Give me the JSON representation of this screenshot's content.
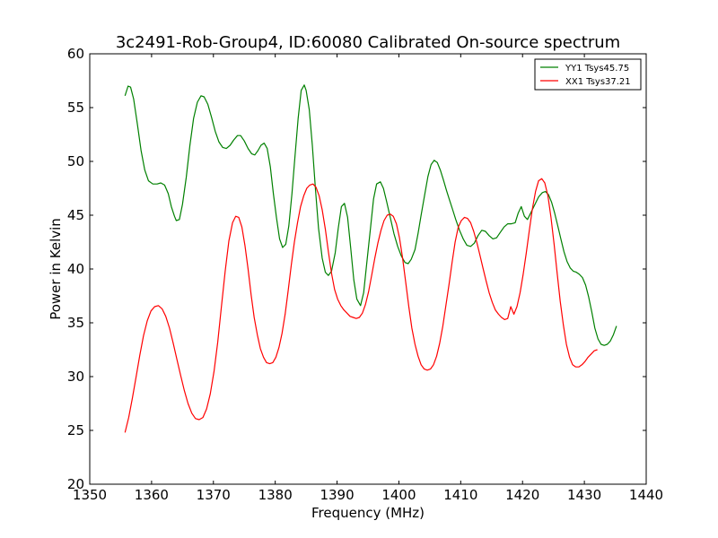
{
  "chart_data": {
    "type": "line",
    "title": "3c2491-Rob-Group4, ID:60080 Calibrated On-source spectrum",
    "xlabel": "Frequency (MHz)",
    "ylabel": "Power in Kelvin",
    "xlim": [
      1350,
      1440
    ],
    "ylim": [
      20,
      60
    ],
    "xticks": [
      "1350",
      "1360",
      "1370",
      "1380",
      "1390",
      "1400",
      "1410",
      "1420",
      "1430",
      "1440"
    ],
    "yticks": [
      "20",
      "25",
      "30",
      "35",
      "40",
      "45",
      "50",
      "55",
      "60"
    ],
    "grid": false,
    "legend_position": "top-right",
    "series": [
      {
        "name": "YY1 Tsys45.75",
        "color": "#008000",
        "points": [
          [
            1355.7,
            56.1
          ],
          [
            1356.2,
            57.0
          ],
          [
            1356.6,
            56.9
          ],
          [
            1357.1,
            55.8
          ],
          [
            1357.7,
            53.5
          ],
          [
            1358.3,
            51.0
          ],
          [
            1358.9,
            49.2
          ],
          [
            1359.5,
            48.2
          ],
          [
            1360.2,
            47.9
          ],
          [
            1360.9,
            47.9
          ],
          [
            1361.5,
            48.0
          ],
          [
            1362.1,
            47.8
          ],
          [
            1362.7,
            47.0
          ],
          [
            1363.2,
            45.8
          ],
          [
            1363.7,
            44.9
          ],
          [
            1364.0,
            44.5
          ],
          [
            1364.5,
            44.6
          ],
          [
            1365.0,
            46.0
          ],
          [
            1365.6,
            48.5
          ],
          [
            1366.2,
            51.5
          ],
          [
            1366.8,
            54.0
          ],
          [
            1367.4,
            55.5
          ],
          [
            1368.0,
            56.1
          ],
          [
            1368.5,
            56.0
          ],
          [
            1369.1,
            55.3
          ],
          [
            1369.7,
            54.1
          ],
          [
            1370.3,
            52.8
          ],
          [
            1370.9,
            51.8
          ],
          [
            1371.5,
            51.3
          ],
          [
            1372.1,
            51.2
          ],
          [
            1372.7,
            51.5
          ],
          [
            1373.3,
            52.0
          ],
          [
            1373.9,
            52.4
          ],
          [
            1374.4,
            52.4
          ],
          [
            1375.0,
            51.9
          ],
          [
            1375.6,
            51.2
          ],
          [
            1376.2,
            50.7
          ],
          [
            1376.7,
            50.6
          ],
          [
            1377.2,
            51.0
          ],
          [
            1377.7,
            51.5
          ],
          [
            1378.2,
            51.7
          ],
          [
            1378.7,
            51.2
          ],
          [
            1379.2,
            49.5
          ],
          [
            1379.7,
            47.0
          ],
          [
            1380.2,
            44.8
          ],
          [
            1380.7,
            42.8
          ],
          [
            1381.2,
            42.0
          ],
          [
            1381.7,
            42.3
          ],
          [
            1382.2,
            44.0
          ],
          [
            1382.7,
            47.0
          ],
          [
            1383.2,
            50.5
          ],
          [
            1383.7,
            54.0
          ],
          [
            1384.2,
            56.6
          ],
          [
            1384.7,
            57.1
          ],
          [
            1385.0,
            56.6
          ],
          [
            1385.5,
            54.8
          ],
          [
            1386.0,
            51.5
          ],
          [
            1386.5,
            47.5
          ],
          [
            1387.0,
            43.8
          ],
          [
            1387.6,
            41.0
          ],
          [
            1388.1,
            39.7
          ],
          [
            1388.6,
            39.4
          ],
          [
            1389.1,
            39.8
          ],
          [
            1389.7,
            41.5
          ],
          [
            1390.2,
            43.8
          ],
          [
            1390.7,
            45.8
          ],
          [
            1391.2,
            46.1
          ],
          [
            1391.7,
            44.8
          ],
          [
            1392.2,
            42.0
          ],
          [
            1392.7,
            39.0
          ],
          [
            1393.2,
            37.2
          ],
          [
            1393.8,
            36.6
          ],
          [
            1394.3,
            37.8
          ],
          [
            1394.8,
            40.5
          ],
          [
            1395.4,
            43.8
          ],
          [
            1395.9,
            46.5
          ],
          [
            1396.4,
            47.9
          ],
          [
            1397.0,
            48.1
          ],
          [
            1397.5,
            47.5
          ],
          [
            1398.0,
            46.3
          ],
          [
            1398.6,
            44.8
          ],
          [
            1399.2,
            43.3
          ],
          [
            1399.8,
            42.1
          ],
          [
            1400.4,
            41.2
          ],
          [
            1401.0,
            40.6
          ],
          [
            1401.5,
            40.5
          ],
          [
            1402.0,
            40.9
          ],
          [
            1402.6,
            41.8
          ],
          [
            1403.1,
            43.3
          ],
          [
            1403.6,
            45.0
          ],
          [
            1404.2,
            47.0
          ],
          [
            1404.7,
            48.6
          ],
          [
            1405.2,
            49.7
          ],
          [
            1405.7,
            50.1
          ],
          [
            1406.2,
            49.9
          ],
          [
            1406.7,
            49.2
          ],
          [
            1407.2,
            48.3
          ],
          [
            1407.7,
            47.3
          ],
          [
            1408.2,
            46.4
          ],
          [
            1408.7,
            45.5
          ],
          [
            1409.2,
            44.6
          ],
          [
            1409.8,
            43.6
          ],
          [
            1410.4,
            42.8
          ],
          [
            1411.0,
            42.2
          ],
          [
            1411.6,
            42.1
          ],
          [
            1412.2,
            42.4
          ],
          [
            1412.8,
            43.1
          ],
          [
            1413.4,
            43.6
          ],
          [
            1414.0,
            43.5
          ],
          [
            1414.6,
            43.1
          ],
          [
            1415.2,
            42.8
          ],
          [
            1415.8,
            42.9
          ],
          [
            1416.4,
            43.4
          ],
          [
            1417.0,
            43.9
          ],
          [
            1417.6,
            44.2
          ],
          [
            1418.2,
            44.2
          ],
          [
            1418.8,
            44.3
          ],
          [
            1419.3,
            45.2
          ],
          [
            1419.8,
            45.8
          ],
          [
            1420.3,
            44.9
          ],
          [
            1420.8,
            44.6
          ],
          [
            1421.4,
            45.3
          ],
          [
            1422.0,
            46.0
          ],
          [
            1422.6,
            46.7
          ],
          [
            1423.2,
            47.1
          ],
          [
            1423.7,
            47.2
          ],
          [
            1424.2,
            46.9
          ],
          [
            1424.7,
            46.2
          ],
          [
            1425.2,
            45.2
          ],
          [
            1425.7,
            44.0
          ],
          [
            1426.2,
            42.8
          ],
          [
            1426.7,
            41.6
          ],
          [
            1427.2,
            40.7
          ],
          [
            1427.7,
            40.1
          ],
          [
            1428.2,
            39.8
          ],
          [
            1428.7,
            39.7
          ],
          [
            1429.2,
            39.5
          ],
          [
            1429.7,
            39.2
          ],
          [
            1430.2,
            38.5
          ],
          [
            1430.7,
            37.4
          ],
          [
            1431.2,
            36.0
          ],
          [
            1431.7,
            34.5
          ],
          [
            1432.2,
            33.5
          ],
          [
            1432.7,
            33.0
          ],
          [
            1433.2,
            32.9
          ],
          [
            1433.7,
            33.0
          ],
          [
            1434.2,
            33.3
          ],
          [
            1434.7,
            33.9
          ],
          [
            1435.2,
            34.7
          ]
        ]
      },
      {
        "name": "XX1 Tsys37.21",
        "color": "#ff0000",
        "points": [
          [
            1355.7,
            24.8
          ],
          [
            1356.3,
            26.2
          ],
          [
            1356.9,
            28.0
          ],
          [
            1357.5,
            30.0
          ],
          [
            1358.1,
            32.0
          ],
          [
            1358.7,
            33.8
          ],
          [
            1359.3,
            35.2
          ],
          [
            1359.9,
            36.1
          ],
          [
            1360.5,
            36.5
          ],
          [
            1361.1,
            36.6
          ],
          [
            1361.7,
            36.3
          ],
          [
            1362.3,
            35.6
          ],
          [
            1362.9,
            34.5
          ],
          [
            1363.5,
            33.1
          ],
          [
            1364.1,
            31.6
          ],
          [
            1364.7,
            30.1
          ],
          [
            1365.3,
            28.7
          ],
          [
            1365.9,
            27.5
          ],
          [
            1366.5,
            26.6
          ],
          [
            1367.1,
            26.1
          ],
          [
            1367.7,
            26.0
          ],
          [
            1368.3,
            26.2
          ],
          [
            1368.9,
            27.0
          ],
          [
            1369.5,
            28.4
          ],
          [
            1370.1,
            30.5
          ],
          [
            1370.7,
            33.2
          ],
          [
            1371.3,
            36.5
          ],
          [
            1371.9,
            39.8
          ],
          [
            1372.5,
            42.6
          ],
          [
            1373.1,
            44.3
          ],
          [
            1373.6,
            44.9
          ],
          [
            1374.1,
            44.8
          ],
          [
            1374.6,
            43.9
          ],
          [
            1375.1,
            42.2
          ],
          [
            1375.6,
            40.0
          ],
          [
            1376.1,
            37.6
          ],
          [
            1376.6,
            35.5
          ],
          [
            1377.1,
            33.9
          ],
          [
            1377.6,
            32.6
          ],
          [
            1378.1,
            31.8
          ],
          [
            1378.6,
            31.3
          ],
          [
            1379.1,
            31.2
          ],
          [
            1379.6,
            31.3
          ],
          [
            1380.1,
            31.8
          ],
          [
            1380.6,
            32.7
          ],
          [
            1381.1,
            34.0
          ],
          [
            1381.6,
            35.8
          ],
          [
            1382.1,
            38.0
          ],
          [
            1382.6,
            40.4
          ],
          [
            1383.1,
            42.5
          ],
          [
            1383.6,
            44.3
          ],
          [
            1384.1,
            45.8
          ],
          [
            1384.6,
            46.8
          ],
          [
            1385.1,
            47.5
          ],
          [
            1385.6,
            47.8
          ],
          [
            1386.1,
            47.9
          ],
          [
            1386.6,
            47.6
          ],
          [
            1387.1,
            46.8
          ],
          [
            1387.6,
            45.5
          ],
          [
            1388.1,
            43.7
          ],
          [
            1388.6,
            41.6
          ],
          [
            1389.1,
            39.6
          ],
          [
            1389.6,
            38.1
          ],
          [
            1390.1,
            37.2
          ],
          [
            1390.6,
            36.6
          ],
          [
            1391.1,
            36.2
          ],
          [
            1391.6,
            35.9
          ],
          [
            1392.1,
            35.6
          ],
          [
            1392.6,
            35.5
          ],
          [
            1393.1,
            35.4
          ],
          [
            1393.6,
            35.5
          ],
          [
            1394.1,
            35.9
          ],
          [
            1394.6,
            36.7
          ],
          [
            1395.1,
            37.9
          ],
          [
            1395.6,
            39.4
          ],
          [
            1396.1,
            41.0
          ],
          [
            1396.6,
            42.4
          ],
          [
            1397.1,
            43.6
          ],
          [
            1397.6,
            44.5
          ],
          [
            1398.1,
            45.0
          ],
          [
            1398.6,
            45.1
          ],
          [
            1399.1,
            44.9
          ],
          [
            1399.6,
            44.2
          ],
          [
            1400.1,
            42.9
          ],
          [
            1400.6,
            41.0
          ],
          [
            1401.1,
            38.8
          ],
          [
            1401.6,
            36.5
          ],
          [
            1402.1,
            34.5
          ],
          [
            1402.6,
            33.0
          ],
          [
            1403.1,
            31.9
          ],
          [
            1403.6,
            31.1
          ],
          [
            1404.1,
            30.7
          ],
          [
            1404.6,
            30.6
          ],
          [
            1405.1,
            30.7
          ],
          [
            1405.6,
            31.1
          ],
          [
            1406.1,
            31.9
          ],
          [
            1406.6,
            33.1
          ],
          [
            1407.1,
            34.7
          ],
          [
            1407.6,
            36.6
          ],
          [
            1408.1,
            38.5
          ],
          [
            1408.6,
            40.6
          ],
          [
            1409.1,
            42.5
          ],
          [
            1409.6,
            43.9
          ],
          [
            1410.1,
            44.5
          ],
          [
            1410.6,
            44.8
          ],
          [
            1411.1,
            44.7
          ],
          [
            1411.6,
            44.3
          ],
          [
            1412.1,
            43.5
          ],
          [
            1412.6,
            42.5
          ],
          [
            1413.1,
            41.3
          ],
          [
            1413.6,
            40.1
          ],
          [
            1414.1,
            38.9
          ],
          [
            1414.6,
            37.8
          ],
          [
            1415.1,
            36.9
          ],
          [
            1415.6,
            36.2
          ],
          [
            1416.1,
            35.8
          ],
          [
            1416.6,
            35.5
          ],
          [
            1417.1,
            35.3
          ],
          [
            1417.6,
            35.4
          ],
          [
            1418.1,
            36.5
          ],
          [
            1418.6,
            35.8
          ],
          [
            1419.1,
            36.5
          ],
          [
            1419.6,
            37.8
          ],
          [
            1420.1,
            39.5
          ],
          [
            1420.6,
            41.5
          ],
          [
            1421.1,
            43.6
          ],
          [
            1421.6,
            45.6
          ],
          [
            1422.1,
            47.2
          ],
          [
            1422.6,
            48.2
          ],
          [
            1423.1,
            48.4
          ],
          [
            1423.6,
            48.0
          ],
          [
            1424.1,
            46.8
          ],
          [
            1424.6,
            44.8
          ],
          [
            1425.1,
            42.3
          ],
          [
            1425.6,
            39.6
          ],
          [
            1426.1,
            37.0
          ],
          [
            1426.6,
            34.8
          ],
          [
            1427.1,
            33.0
          ],
          [
            1427.6,
            31.8
          ],
          [
            1428.1,
            31.1
          ],
          [
            1428.6,
            30.9
          ],
          [
            1429.1,
            30.9
          ],
          [
            1429.6,
            31.1
          ],
          [
            1430.1,
            31.4
          ],
          [
            1430.6,
            31.8
          ],
          [
            1431.1,
            32.1
          ],
          [
            1431.6,
            32.4
          ],
          [
            1432.1,
            32.5
          ]
        ]
      }
    ]
  }
}
